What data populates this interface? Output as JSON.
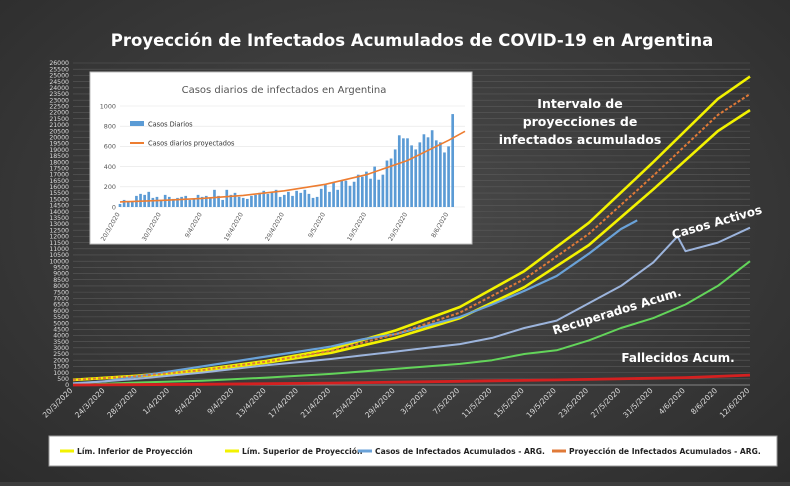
{
  "chart_data": [
    {
      "type": "line",
      "title": "Proyección de Infectados Acumulados de COVID-19 en Argentina",
      "x_tick_labels": [
        "20/3/2020",
        "24/3/2020",
        "28/3/2020",
        "1/4/2020",
        "5/4/2020",
        "9/4/2020",
        "13/4/2020",
        "17/4/2020",
        "21/4/2020",
        "25/4/2020",
        "29/4/2020",
        "3/5/2020",
        "7/5/2020",
        "11/5/2020",
        "15/5/2020",
        "19/5/2020",
        "23/5/2020",
        "27/5/2020",
        "31/5/2020",
        "4/6/2020",
        "8/6/2020",
        "12/6/2020"
      ],
      "ylim": [
        0,
        26000
      ],
      "y_ticks": [
        0,
        500,
        1000,
        1500,
        2000,
        2500,
        3000,
        3500,
        4000,
        4500,
        5000,
        5500,
        6000,
        6500,
        7000,
        7500,
        8000,
        8500,
        9000,
        9500,
        10000,
        10500,
        11000,
        11500,
        12000,
        12500,
        13000,
        13500,
        14000,
        14500,
        15000,
        15500,
        16000,
        16500,
        17000,
        17500,
        18000,
        18500,
        19000,
        19500,
        20000,
        20500,
        21000,
        21500,
        22000,
        22500,
        23000,
        23500,
        24000,
        24500,
        25000,
        25500,
        26000
      ],
      "grid": true,
      "legend_position": "bottom",
      "series": [
        {
          "name": "Lím. Inferior de Proyección",
          "color": "#f2f200",
          "x": [
            "20/3/2020",
            "28/3/2020",
            "5/4/2020",
            "13/4/2020",
            "21/4/2020",
            "29/4/2020",
            "7/5/2020",
            "15/5/2020",
            "23/5/2020",
            "31/5/2020",
            "8/6/2020",
            "12/6/2020"
          ],
          "values": [
            400,
            700,
            1150,
            1800,
            2600,
            3800,
            5400,
            7900,
            11300,
            15800,
            20500,
            22200
          ]
        },
        {
          "name": "Lím. Superior de Proyección",
          "color": "#f2f200",
          "x": [
            "20/3/2020",
            "28/3/2020",
            "5/4/2020",
            "13/4/2020",
            "21/4/2020",
            "29/4/2020",
            "7/5/2020",
            "15/5/2020",
            "23/5/2020",
            "31/5/2020",
            "8/6/2020",
            "12/6/2020"
          ],
          "values": [
            420,
            750,
            1250,
            1950,
            2900,
            4400,
            6300,
            9200,
            13100,
            18000,
            23100,
            24900
          ]
        },
        {
          "name": "Casos de Infectados Acumulados - ARG.",
          "color": "#6aa2d8",
          "x": [
            "20/3/2020",
            "24/3/2020",
            "28/3/2020",
            "1/4/2020",
            "5/4/2020",
            "9/4/2020",
            "13/4/2020",
            "17/4/2020",
            "21/4/2020",
            "25/4/2020",
            "29/4/2020",
            "3/5/2020",
            "7/5/2020",
            "11/5/2020",
            "15/5/2020",
            "19/5/2020",
            "23/5/2020",
            "27/5/2020",
            "29/5/2020"
          ],
          "values": [
            130,
            300,
            700,
            1100,
            1500,
            1900,
            2300,
            2700,
            3100,
            3700,
            4100,
            4800,
            5500,
            6500,
            7600,
            8800,
            10600,
            12600,
            13300
          ]
        },
        {
          "name": "Proyección de Infectados Acumulados - ARG.",
          "color": "#e07a38",
          "x": [
            "20/3/2020",
            "28/3/2020",
            "5/4/2020",
            "13/4/2020",
            "21/4/2020",
            "29/4/2020",
            "7/5/2020",
            "15/5/2020",
            "23/5/2020",
            "31/5/2020",
            "8/6/2020",
            "12/6/2020"
          ],
          "values": [
            410,
            720,
            1200,
            1880,
            2750,
            4100,
            5850,
            8550,
            12200,
            16900,
            21800,
            23500
          ]
        },
        {
          "name": "Casos Activos",
          "color": "#9cb4dc",
          "x": [
            "20/3/2020",
            "28/3/2020",
            "5/4/2020",
            "13/4/2020",
            "21/4/2020",
            "29/4/2020",
            "3/5/2020",
            "7/5/2020",
            "11/5/2020",
            "15/5/2020",
            "19/5/2020",
            "23/5/2020",
            "27/5/2020",
            "31/5/2020",
            "3/6/2020",
            "4/6/2020",
            "8/6/2020",
            "12/6/2020"
          ],
          "values": [
            100,
            500,
            1000,
            1600,
            2100,
            2700,
            3000,
            3300,
            3800,
            4600,
            5200,
            6600,
            8000,
            9900,
            12000,
            10800,
            11500,
            12700
          ]
        },
        {
          "name": "Recuperados Acum.",
          "color": "#63d45a",
          "x": [
            "20/3/2020",
            "28/3/2020",
            "5/4/2020",
            "13/4/2020",
            "21/4/2020",
            "29/4/2020",
            "7/5/2020",
            "11/5/2020",
            "15/5/2020",
            "19/5/2020",
            "23/5/2020",
            "27/5/2020",
            "31/5/2020",
            "4/6/2020",
            "8/6/2020",
            "12/6/2020"
          ],
          "values": [
            0,
            200,
            350,
            600,
            900,
            1300,
            1700,
            2000,
            2500,
            2800,
            3600,
            4600,
            5400,
            6500,
            8000,
            10000
          ]
        },
        {
          "name": "Fallecidos Acum.",
          "color": "#d42020",
          "x": [
            "20/3/2020",
            "5/4/2020",
            "21/4/2020",
            "7/5/2020",
            "23/5/2020",
            "4/6/2020",
            "12/6/2020"
          ],
          "values": [
            3,
            60,
            150,
            300,
            450,
            600,
            800
          ]
        }
      ],
      "annotations": [
        {
          "text_lines": [
            "Intervalo de",
            "proyecciones de",
            "infectados acumulados"
          ]
        },
        {
          "text_lines": [
            "Casos Activos"
          ]
        },
        {
          "text_lines": [
            "Recuperados Acum."
          ]
        },
        {
          "text_lines": [
            "Fallecidos Acum."
          ]
        }
      ]
    },
    {
      "type": "bar",
      "title": "Casos diarios de infectados en Argentina",
      "x_tick_labels": [
        "20/3/2020",
        "30/3/2020",
        "9/4/2020",
        "19/4/2020",
        "29/4/2020",
        "9/5/2020",
        "19/5/2020",
        "29/5/2020",
        "8/6/2020"
      ],
      "ylim": [
        0,
        1000
      ],
      "y_ticks": [
        0,
        200,
        400,
        600,
        800,
        1000
      ],
      "series": [
        {
          "name": "Casos Diarios",
          "color": "#5b9bd5",
          "values": [
            30,
            70,
            60,
            50,
            110,
            130,
            120,
            150,
            90,
            100,
            70,
            120,
            100,
            80,
            90,
            100,
            110,
            70,
            80,
            120,
            100,
            110,
            90,
            170,
            110,
            70,
            170,
            120,
            140,
            100,
            90,
            80,
            110,
            120,
            140,
            160,
            130,
            150,
            170,
            100,
            120,
            150,
            110,
            160,
            140,
            170,
            130,
            90,
            100,
            180,
            220,
            150,
            240,
            170,
            260,
            260,
            210,
            250,
            320,
            300,
            350,
            280,
            400,
            270,
            320,
            460,
            480,
            570,
            710,
            680,
            680,
            610,
            570,
            640,
            720,
            690,
            760,
            660,
            640,
            540,
            600,
            920
          ]
        },
        {
          "name": "Casos diarios proyectados",
          "color": "#ed7d31",
          "x": [
            "20/3/2020",
            "30/3/2020",
            "9/4/2020",
            "19/4/2020",
            "29/4/2020",
            "9/5/2020",
            "19/5/2020",
            "29/5/2020",
            "8/6/2020",
            "12/6/2020"
          ],
          "values": [
            50,
            65,
            85,
            115,
            160,
            225,
            320,
            460,
            660,
            750
          ]
        }
      ]
    }
  ]
}
